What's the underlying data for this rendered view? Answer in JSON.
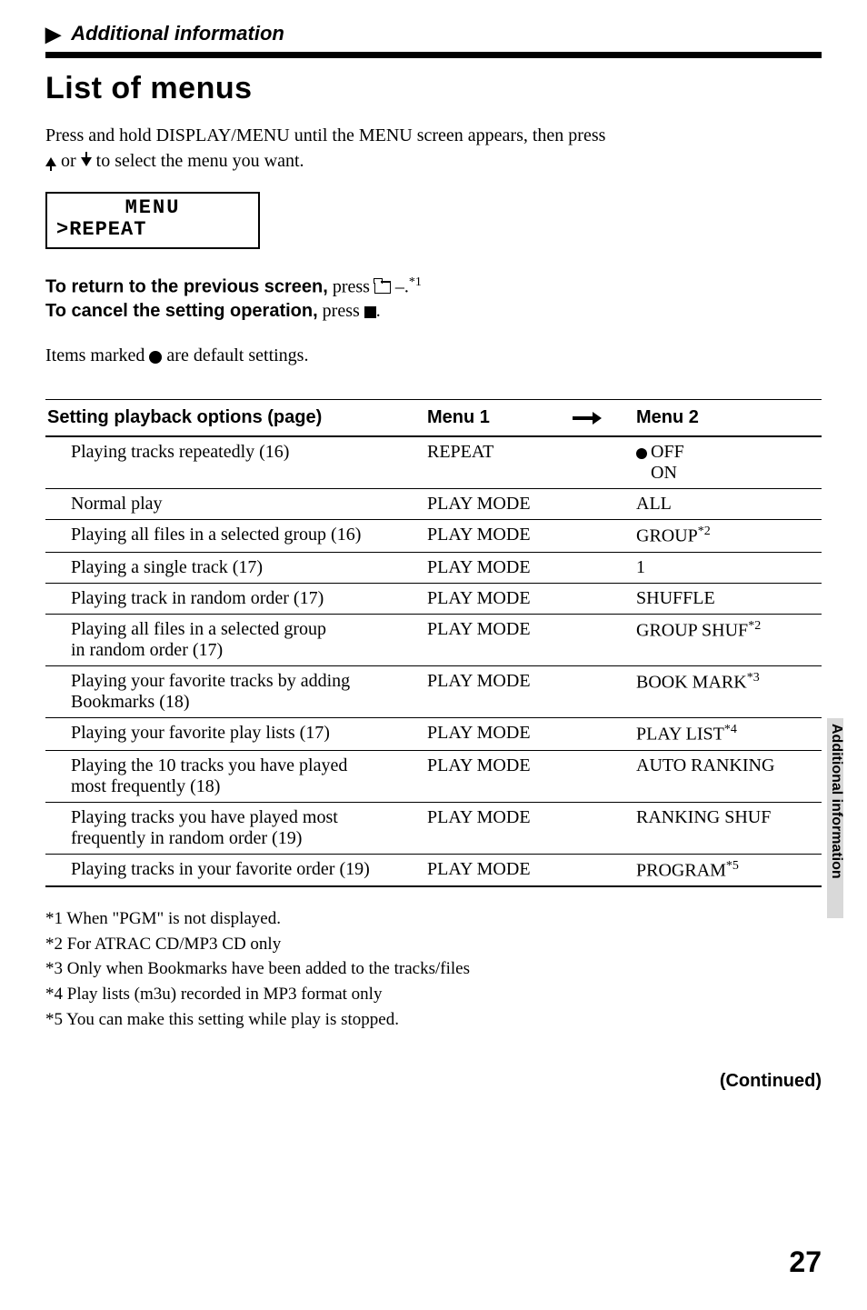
{
  "breadcrumb": {
    "arrow_glyph": "▶",
    "text": "Additional information"
  },
  "title": "List of menus",
  "intro": {
    "line1": "Press and hold DISPLAY/MENU until the MENU screen appears, then press",
    "line2_mid": " or ",
    "line2_end": " to select the menu you want."
  },
  "lcd": {
    "line1": "MENU",
    "line2": ">REPEAT"
  },
  "instr": {
    "return_bold": "To return to the previous screen,",
    "return_rest": " press ",
    "return_after": " –.",
    "return_sup": "*1",
    "cancel_bold": "To cancel the setting operation,",
    "cancel_rest": " press ",
    "cancel_after": "."
  },
  "defaults_note_pre": "Items marked ",
  "defaults_note_post": " are default settings.",
  "table": {
    "header": {
      "opt": "Setting playback options (page)",
      "m1": "Menu 1",
      "m2": "Menu 2"
    },
    "rows": [
      {
        "opt": "Playing tracks repeatedly (16)",
        "m1": "REPEAT",
        "m2_bullet": true,
        "m2": "OFF",
        "m2_line2": "ON"
      },
      {
        "opt": "Normal play",
        "m1": "PLAY MODE",
        "m2": "ALL"
      },
      {
        "opt": "Playing all files in a selected group (16)",
        "m1": "PLAY MODE",
        "m2": "GROUP",
        "m2_sup": "*2"
      },
      {
        "opt": "Playing a single track (17)",
        "m1": "PLAY MODE",
        "m2": "1"
      },
      {
        "opt": "Playing track in random order (17)",
        "m1": "PLAY MODE",
        "m2": "SHUFFLE"
      },
      {
        "opt": "Playing all files in a selected group",
        "opt_line2": "in random order (17)",
        "m1": "PLAY MODE",
        "m2": "GROUP SHUF",
        "m2_sup": "*2"
      },
      {
        "opt": "Playing your favorite tracks by adding",
        "opt_line2": "Bookmarks (18)",
        "m1": "PLAY MODE",
        "m2": "BOOK MARK",
        "m2_sup": "*3"
      },
      {
        "opt": "Playing your favorite play lists (17)",
        "m1": "PLAY MODE",
        "m2": "PLAY LIST",
        "m2_sup": "*4"
      },
      {
        "opt": "Playing the 10 tracks you have played",
        "opt_line2": "most frequently (18)",
        "m1": "PLAY MODE",
        "m2": "AUTO RANKING"
      },
      {
        "opt": "Playing tracks you have played most",
        "opt_line2": "frequently in random order (19)",
        "m1": "PLAY MODE",
        "m2": "RANKING SHUF"
      },
      {
        "opt": "Playing tracks in your favorite order (19)",
        "m1": "PLAY MODE",
        "m2": "PROGRAM",
        "m2_sup": "*5",
        "last": true
      }
    ]
  },
  "footnotes": [
    "*1 When \"PGM\" is not displayed.",
    "*2 For ATRAC CD/MP3 CD only",
    "*3 Only when Bookmarks have been added to the tracks/files",
    "*4 Play lists (m3u) recorded in MP3 format only",
    "*5 You can make this setting while play is stopped."
  ],
  "continued": "(Continued)",
  "side_tab": "Additional information",
  "page_number": "27"
}
